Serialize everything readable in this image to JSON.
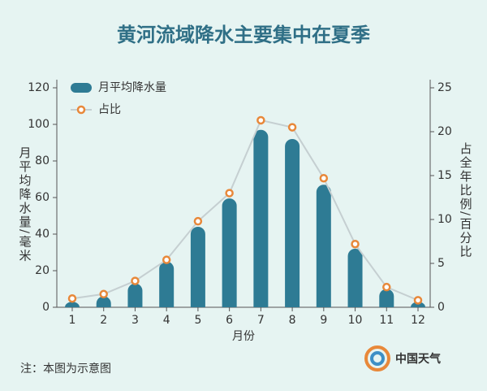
{
  "chart_data": {
    "type": "bar_line",
    "title": "黄河流域降水主要集中在夏季",
    "y_label": "月平均降水量/毫米",
    "y2_label": "占全年比例/百分比",
    "x_label": "月份",
    "note": "注：本图为示意图",
    "source": "中国天气",
    "categories": [
      "1",
      "2",
      "3",
      "4",
      "5",
      "6",
      "7",
      "8",
      "9",
      "10",
      "11",
      "12"
    ],
    "series": [
      {
        "name": "月平均降水量",
        "type": "bar",
        "color": "#2e7b94",
        "values": [
          3,
          6,
          13,
          25,
          44,
          59.5,
          97,
          92,
          67,
          32,
          10,
          3
        ]
      },
      {
        "name": "占比",
        "type": "line",
        "axis": "y2",
        "color": "#e8883a",
        "line_color": "#c5cfd1",
        "values": [
          1.0,
          1.5,
          3.0,
          5.4,
          9.8,
          13.0,
          21.3,
          20.5,
          14.7,
          7.2,
          2.3,
          0.8
        ]
      }
    ],
    "ylim": [
      0,
      120
    ],
    "yticks": [
      0,
      20,
      40,
      60,
      80,
      100,
      120
    ],
    "y2lim": [
      0,
      25
    ],
    "y2ticks": [
      0,
      5,
      10,
      15,
      20,
      25
    ],
    "legend": "top-left"
  }
}
